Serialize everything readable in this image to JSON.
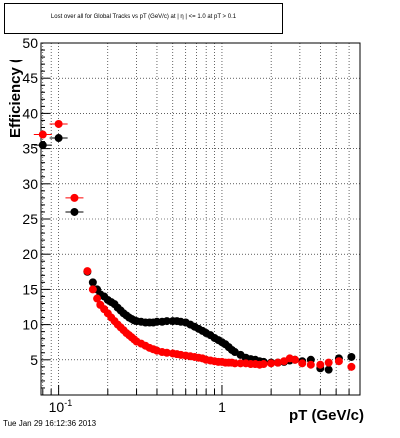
{
  "canvas_title": "Lost over all for Global Tracks vs pT (GeV/c) at |  η | <= 1.0 at pT > 0.1",
  "timestamp": "Tue Jan 29 16:12:36 2013",
  "chart_data": {
    "type": "scatter",
    "title": "Lost over all for Global Tracks vs pT (GeV/c) at |  η | <= 1.0 at pT > 0.1",
    "xlabel": "pT (GeV/c)",
    "ylabel": "Efficiency (%)",
    "xscale": "log",
    "xlim": [
      0.078,
      7.0
    ],
    "ylim": [
      0,
      50
    ],
    "x_ticks_labeled": [
      {
        "value": 0.1,
        "base": "10",
        "exp": "-1"
      },
      {
        "value": 1,
        "label": "1"
      }
    ],
    "y_ticks": [
      0,
      5,
      10,
      15,
      20,
      25,
      30,
      35,
      40,
      45,
      50
    ],
    "y_tick_labels": [
      "5",
      "10",
      "15",
      "20",
      "25",
      "30",
      "35",
      "40",
      "45",
      "50"
    ],
    "grid": true,
    "series": [
      {
        "color": "#000000",
        "points": [
          [
            0.08,
            35.5
          ],
          [
            0.1,
            36.5
          ],
          [
            0.125,
            26
          ],
          [
            0.15,
            17.5
          ],
          [
            0.162,
            16
          ],
          [
            0.172,
            15
          ],
          [
            0.18,
            14.3
          ],
          [
            0.19,
            14
          ],
          [
            0.2,
            13.5
          ],
          [
            0.21,
            13.2
          ],
          [
            0.22,
            12.9
          ],
          [
            0.23,
            12.4
          ],
          [
            0.24,
            12
          ],
          [
            0.25,
            11.6
          ],
          [
            0.26,
            11.3
          ],
          [
            0.27,
            11
          ],
          [
            0.28,
            10.8
          ],
          [
            0.29,
            10.6
          ],
          [
            0.3,
            10.5
          ],
          [
            0.32,
            10.4
          ],
          [
            0.34,
            10.3
          ],
          [
            0.36,
            10.3
          ],
          [
            0.38,
            10.3
          ],
          [
            0.4,
            10.4
          ],
          [
            0.43,
            10.4
          ],
          [
            0.46,
            10.5
          ],
          [
            0.5,
            10.5
          ],
          [
            0.53,
            10.5
          ],
          [
            0.56,
            10.4
          ],
          [
            0.6,
            10.3
          ],
          [
            0.64,
            10
          ],
          [
            0.68,
            9.7
          ],
          [
            0.72,
            9.4
          ],
          [
            0.76,
            9.1
          ],
          [
            0.8,
            8.8
          ],
          [
            0.85,
            8.5
          ],
          [
            0.9,
            8.1
          ],
          [
            0.95,
            7.8
          ],
          [
            1.0,
            7.5
          ],
          [
            1.05,
            7.2
          ],
          [
            1.1,
            6.8
          ],
          [
            1.15,
            6.4
          ],
          [
            1.2,
            6.1
          ],
          [
            1.3,
            5.7
          ],
          [
            1.4,
            5.3
          ],
          [
            1.5,
            5.1
          ],
          [
            1.6,
            5
          ],
          [
            1.7,
            4.8
          ],
          [
            1.8,
            4.7
          ],
          [
            2.0,
            4.6
          ],
          [
            2.2,
            4.6
          ],
          [
            2.4,
            4.7
          ],
          [
            2.6,
            4.9
          ],
          [
            2.8,
            5
          ],
          [
            3.1,
            4.8
          ],
          [
            3.5,
            5
          ],
          [
            4.0,
            3.8
          ],
          [
            4.5,
            3.6
          ],
          [
            5.2,
            5.2
          ],
          [
            6.2,
            5.4
          ]
        ]
      },
      {
        "color": "#ff0000",
        "points": [
          [
            0.08,
            37
          ],
          [
            0.1,
            38.5
          ],
          [
            0.125,
            28
          ],
          [
            0.15,
            17.6
          ],
          [
            0.162,
            15
          ],
          [
            0.172,
            13.7
          ],
          [
            0.18,
            12.8
          ],
          [
            0.19,
            12.2
          ],
          [
            0.2,
            11.6
          ],
          [
            0.21,
            11
          ],
          [
            0.22,
            10.5
          ],
          [
            0.23,
            10
          ],
          [
            0.24,
            9.6
          ],
          [
            0.25,
            9.2
          ],
          [
            0.26,
            8.8
          ],
          [
            0.27,
            8.5
          ],
          [
            0.28,
            8.2
          ],
          [
            0.29,
            7.9
          ],
          [
            0.3,
            7.6
          ],
          [
            0.32,
            7.3
          ],
          [
            0.34,
            7
          ],
          [
            0.36,
            6.7
          ],
          [
            0.38,
            6.5
          ],
          [
            0.4,
            6.3
          ],
          [
            0.43,
            6.1
          ],
          [
            0.46,
            6
          ],
          [
            0.5,
            5.9
          ],
          [
            0.53,
            5.8
          ],
          [
            0.56,
            5.7
          ],
          [
            0.6,
            5.6
          ],
          [
            0.64,
            5.5
          ],
          [
            0.68,
            5.4
          ],
          [
            0.72,
            5.3
          ],
          [
            0.76,
            5.2
          ],
          [
            0.8,
            5
          ],
          [
            0.85,
            4.9
          ],
          [
            0.9,
            4.8
          ],
          [
            0.95,
            4.7
          ],
          [
            1.0,
            4.7
          ],
          [
            1.05,
            4.6
          ],
          [
            1.1,
            4.6
          ],
          [
            1.15,
            4.6
          ],
          [
            1.2,
            4.5
          ],
          [
            1.3,
            4.5
          ],
          [
            1.4,
            4.5
          ],
          [
            1.5,
            4.4
          ],
          [
            1.6,
            4.4
          ],
          [
            1.7,
            4.3
          ],
          [
            1.8,
            4.4
          ],
          [
            2.0,
            4.5
          ],
          [
            2.2,
            4.6
          ],
          [
            2.4,
            4.8
          ],
          [
            2.6,
            5.2
          ],
          [
            2.8,
            5
          ],
          [
            3.1,
            4.5
          ],
          [
            3.5,
            4.3
          ],
          [
            4.0,
            4.3
          ],
          [
            4.5,
            4.6
          ],
          [
            5.2,
            4.8
          ],
          [
            6.2,
            4
          ]
        ]
      }
    ]
  }
}
